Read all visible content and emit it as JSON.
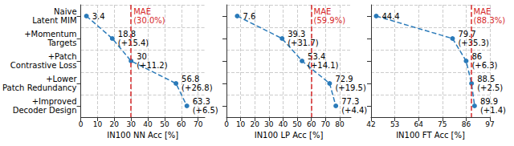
{
  "chart_data": [
    {
      "type": "line",
      "orientation": "horizontal",
      "categories": [
        "Naive\nLatent MIM",
        "+Momentum\nTargets",
        "+Patch\nContrastive Loss",
        "+Lower\nPatch Redundancy",
        "+Improved\nDecoder Design"
      ],
      "values": [
        3.4,
        18.8,
        30,
        56.8,
        63.3
      ],
      "value_labels": [
        "3.4",
        "18.8\n(+15.4)",
        "30\n(+11.2)",
        "56.8\n(+26.8)",
        "63.3\n(+6.5)"
      ],
      "xlabel": "IN100 NN Acc [%]",
      "xlim": [
        0,
        74
      ],
      "xticks": [
        0,
        10,
        20,
        30,
        40,
        50,
        60,
        70
      ],
      "color": "#2a7ab9",
      "marker": "circle",
      "line_style": "dashed",
      "grid": true,
      "data_labels": true,
      "annotations": [
        {
          "x": 30.0,
          "text": "MAE\n(30.0%)",
          "color": "#d62728",
          "line_style": "dashed"
        }
      ]
    },
    {
      "type": "line",
      "orientation": "horizontal",
      "categories": [
        "Naive\nLatent MIM",
        "+Momentum\nTargets",
        "+Patch\nContrastive Loss",
        "+Lower\nPatch Redundancy",
        "+Improved\nDecoder Design"
      ],
      "values": [
        7.6,
        39.3,
        53.4,
        72.9,
        77.3
      ],
      "value_labels": [
        "7.6",
        "39.3\n(+31.7)",
        "53.4\n(+14.1)",
        "72.9\n(+19.5)",
        "77.3\n(+4.4)"
      ],
      "xlabel": "IN100 LP Acc [%]",
      "xlim": [
        0,
        88
      ],
      "xticks": [
        0,
        10,
        20,
        30,
        40,
        50,
        60,
        70,
        80
      ],
      "color": "#2a7ab9",
      "marker": "circle",
      "line_style": "dashed",
      "grid": true,
      "data_labels": true,
      "tick_labels": "x",
      "annotations": [
        {
          "x": 59.9,
          "text": "MAE\n(59.9%)",
          "color": "#d62728",
          "line_style": "dashed"
        }
      ]
    },
    {
      "type": "line",
      "orientation": "horizontal",
      "categories": [
        "Naive\nLatent MIM",
        "+Momentum\nTargets",
        "+Patch\nContrastive Loss",
        "+Lower\nPatch Redundancy",
        "+Improved\nDecoder Design"
      ],
      "values": [
        44.4,
        79.7,
        86,
        88.5,
        89.9
      ],
      "value_labels": [
        "44.4",
        "79.7\n(+35.3)",
        "86\n(+6.3)",
        "88.5\n(+2.5)",
        "89.9\n(+1.4)"
      ],
      "xlabel": "IN100 FT Acc [%]",
      "xlim": [
        42,
        97
      ],
      "xticks": [
        42,
        53,
        64,
        75,
        86,
        97
      ],
      "color": "#2a7ab9",
      "marker": "circle",
      "line_style": "dashed",
      "grid": true,
      "data_labels": true,
      "tick_labels": "x",
      "annotations": [
        {
          "x": 88.3,
          "text": "MAE\n(88.3%)",
          "color": "#d62728",
          "line_style": "dashed"
        }
      ]
    }
  ]
}
